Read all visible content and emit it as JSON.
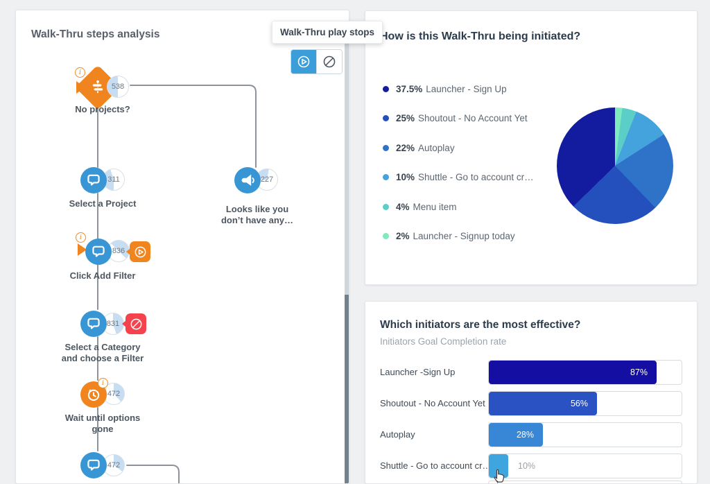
{
  "app": {
    "background": "#eff0f2",
    "card_background": "#ffffff"
  },
  "tooltip": {
    "text": "Walk-Thru play stops"
  },
  "left_panel": {
    "title": "Walk-Thru steps analysis",
    "toggle_buttons": [
      {
        "name": "walkthru-play-stops",
        "icon": "play-circle",
        "active": true,
        "active_color": "#3b9ed8"
      },
      {
        "name": "walkthru-blocked",
        "icon": "circle-slash",
        "active": false
      }
    ],
    "flow": {
      "nodes": [
        {
          "label": "No projects?",
          "count": "538",
          "shape": "diamond",
          "color": "orange",
          "icon": "signpost",
          "info_badge": true,
          "start_marker": true
        },
        {
          "label": "Select a Project",
          "count": "311",
          "shape": "circle",
          "color": "blue",
          "icon": "speech-bubble"
        },
        {
          "label": "Looks like you\ndon’t have any…",
          "count": "227",
          "shape": "circle",
          "color": "blue",
          "icon": "megaphone"
        },
        {
          "label": "Click Add Filter",
          "count": "836",
          "shape": "circle",
          "color": "blue",
          "icon": "speech-bubble",
          "info_badge": true,
          "start_marker": true,
          "side_badge": "play"
        },
        {
          "label": "Select a Category\nand choose a Filter",
          "count": "831",
          "shape": "circle",
          "color": "blue",
          "icon": "speech-bubble",
          "side_badge": "stop"
        },
        {
          "label": "Wait until options\ngone",
          "count": "472",
          "shape": "circle",
          "color": "orange",
          "icon": "wait-clock",
          "info_badge": true
        },
        {
          "label": "",
          "count": "472",
          "shape": "circle",
          "color": "blue",
          "icon": "speech-bubble"
        }
      ],
      "connector_color": "#8d9399"
    }
  },
  "initiation_panel": {
    "title": "How is this Walk-Thru being initiated?"
  },
  "effectiveness_panel": {
    "title": "Which initiators are the most effective?",
    "subtitle": "Initiators Goal Completion rate"
  },
  "chart_data": [
    {
      "type": "pie",
      "title": "How is this Walk-Thru being initiated?",
      "labels": [
        "Launcher - Sign Up",
        "Shoutout - No Account Yet",
        "Autoplay",
        "Shuttle - Go to account cr…",
        "Menu item",
        "Launcher - Signup today"
      ],
      "values": [
        37.5,
        25,
        22,
        10,
        4,
        2
      ],
      "display_values": [
        "37.5%",
        "25%",
        "22%",
        "10%",
        "4%",
        "2%"
      ],
      "colors": [
        "#131b9e",
        "#2450bd",
        "#2f73c9",
        "#44a2dc",
        "#5bcfc7",
        "#7eeabd"
      ],
      "legend_position": "left"
    },
    {
      "type": "bar",
      "orientation": "horizontal",
      "title": "Which initiators are the most effective?",
      "subtitle": "Initiators Goal Completion rate",
      "categories": [
        "Launcher -Sign Up",
        "Shoutout - No Account Yet",
        "Autoplay",
        "Shuttle - Go to account cr…"
      ],
      "values": [
        87,
        56,
        28,
        10
      ],
      "value_labels": [
        "87%",
        "56%",
        "28%",
        "10%"
      ],
      "colors": [
        "#140fa2",
        "#2a52c3",
        "#3787d6",
        "#3fa5de"
      ],
      "xlim": [
        0,
        100
      ]
    }
  ]
}
